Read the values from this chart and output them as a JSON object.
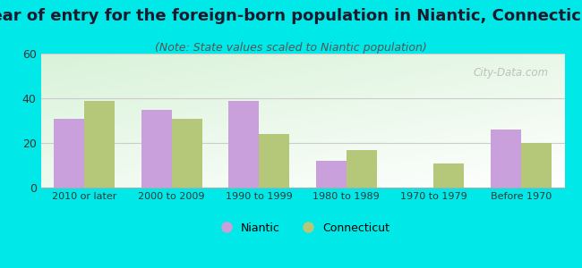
{
  "title": "Year of entry for the foreign-born population in Niantic, Connecticut",
  "subtitle": "(Note: State values scaled to Niantic population)",
  "categories": [
    "2010 or later",
    "2000 to 2009",
    "1990 to 1999",
    "1980 to 1989",
    "1970 to 1979",
    "Before 1970"
  ],
  "niantic_values": [
    31,
    35,
    39,
    12,
    0,
    26
  ],
  "connecticut_values": [
    39,
    31,
    24,
    17,
    11,
    20
  ],
  "niantic_color": "#c9a0dc",
  "connecticut_color": "#b5c778",
  "background_outer": "#00e8e8",
  "ylim": [
    0,
    60
  ],
  "yticks": [
    0,
    20,
    40,
    60
  ],
  "bar_width": 0.35,
  "title_fontsize": 13,
  "subtitle_fontsize": 9,
  "legend_labels": [
    "Niantic",
    "Connecticut"
  ],
  "watermark": "City-Data.com"
}
